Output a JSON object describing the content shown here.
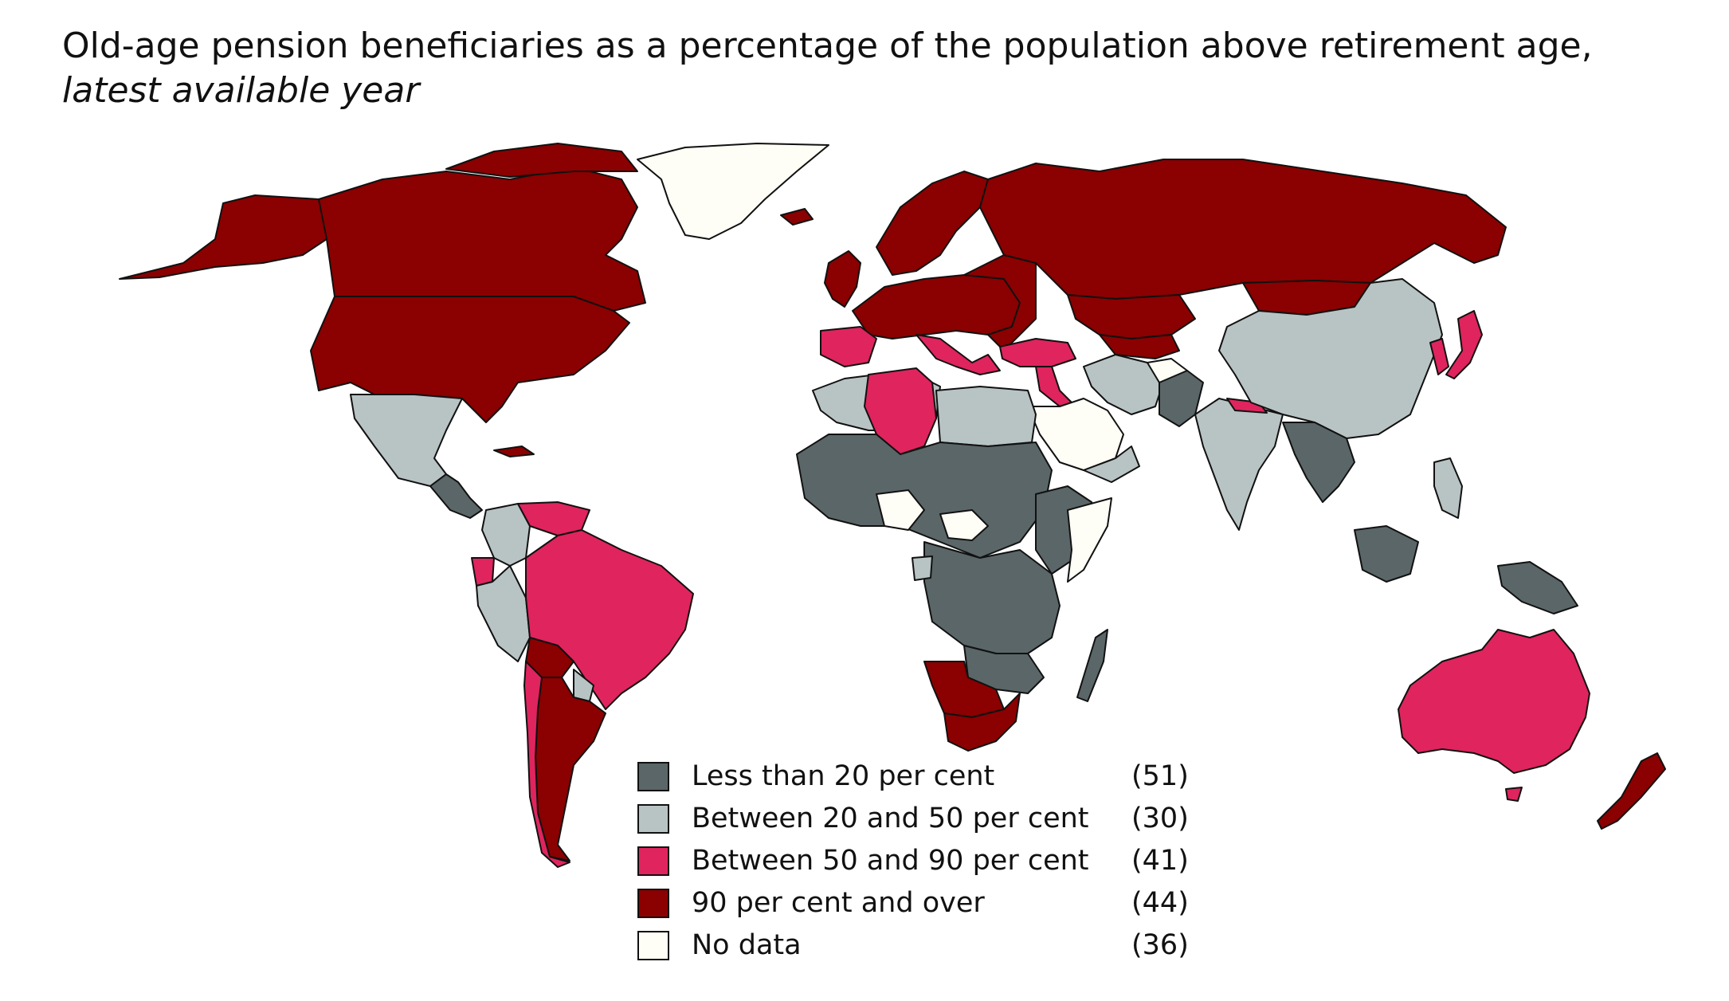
{
  "title": {
    "line1": "Old-age pension beneficiaries as a percentage of the population above retirement age,",
    "line2": "latest available year"
  },
  "colors": {
    "lt20": "#5a6667",
    "b20_50": "#b8c3c4",
    "b50_90": "#e0245e",
    "ge90": "#8b0000",
    "nodata": "#fffef6",
    "border": "#111111"
  },
  "legend": [
    {
      "key": "lt20",
      "label": "Less than 20 per cent",
      "count": "(51)"
    },
    {
      "key": "b20_50",
      "label": "Between 20 and 50 per cent",
      "count": "(30)"
    },
    {
      "key": "b50_90",
      "label": "Between 50 and 90 per cent",
      "count": "(41)"
    },
    {
      "key": "ge90",
      "label": "90 per cent and over",
      "count": "(44)"
    },
    {
      "key": "nodata",
      "label": "No data",
      "count": "(36)"
    }
  ]
}
